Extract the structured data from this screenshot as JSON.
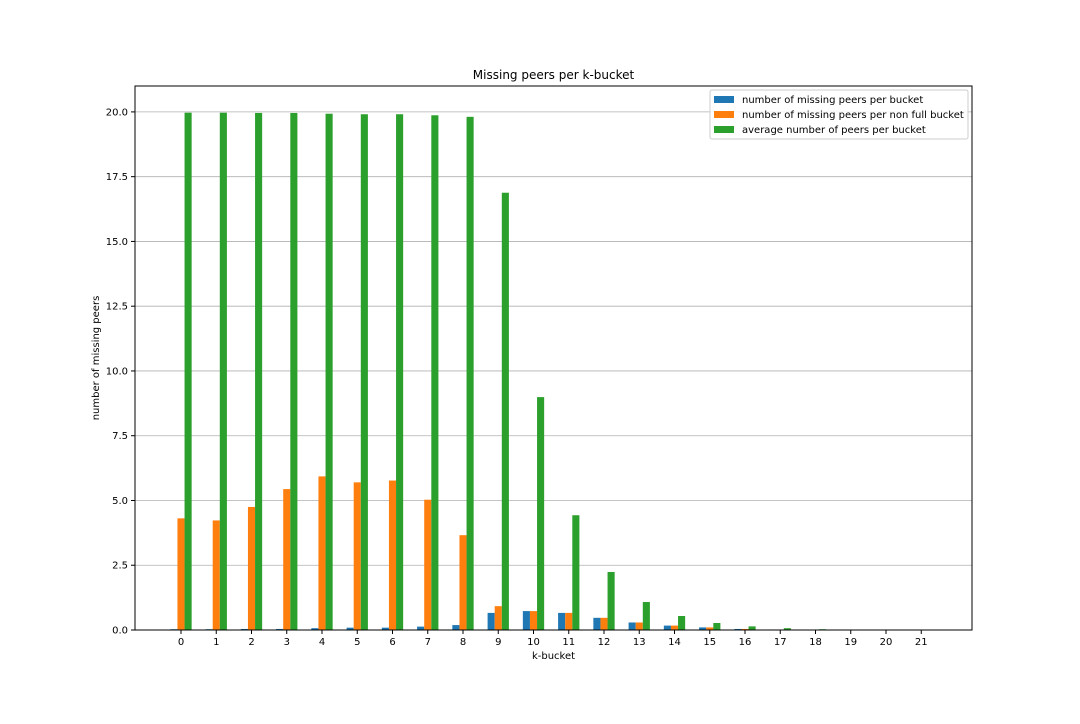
{
  "chart_data": {
    "type": "bar",
    "title": "Missing peers per k-bucket",
    "xlabel": "k-bucket",
    "ylabel": "number of missing peers",
    "categories": [
      "0",
      "1",
      "2",
      "3",
      "4",
      "5",
      "6",
      "7",
      "8",
      "9",
      "10",
      "11",
      "12",
      "13",
      "14",
      "15",
      "16",
      "17",
      "18",
      "19",
      "20",
      "21"
    ],
    "ylim": [
      0,
      21
    ],
    "yticks": [
      "0.0",
      "2.5",
      "5.0",
      "7.5",
      "10.0",
      "12.5",
      "15.0",
      "17.5",
      "20.0"
    ],
    "grid": "y",
    "legend_position": "top-right",
    "series": [
      {
        "name": "number of missing peers per bucket",
        "color": "#1f77b4",
        "values": [
          0.03,
          0.03,
          0.04,
          0.04,
          0.07,
          0.09,
          0.09,
          0.13,
          0.19,
          0.66,
          0.73,
          0.66,
          0.47,
          0.29,
          0.17,
          0.1,
          0.04,
          0.02,
          0.01,
          0,
          0,
          0
        ]
      },
      {
        "name": "number of missing peers per non full bucket",
        "color": "#ff7f0e",
        "values": [
          4.31,
          4.23,
          4.75,
          5.44,
          5.93,
          5.7,
          5.77,
          5.03,
          3.66,
          0.92,
          0.73,
          0.66,
          0.47,
          0.29,
          0.17,
          0.1,
          0.04,
          0.02,
          0.01,
          0,
          0,
          0
        ]
      },
      {
        "name": "average number of peers per bucket",
        "color": "#2ca02c",
        "values": [
          19.97,
          19.97,
          19.96,
          19.96,
          19.93,
          19.91,
          19.91,
          19.87,
          19.81,
          16.88,
          8.99,
          4.43,
          2.24,
          1.08,
          0.54,
          0.27,
          0.14,
          0.07,
          0.03,
          0.01,
          0,
          0
        ]
      }
    ]
  }
}
